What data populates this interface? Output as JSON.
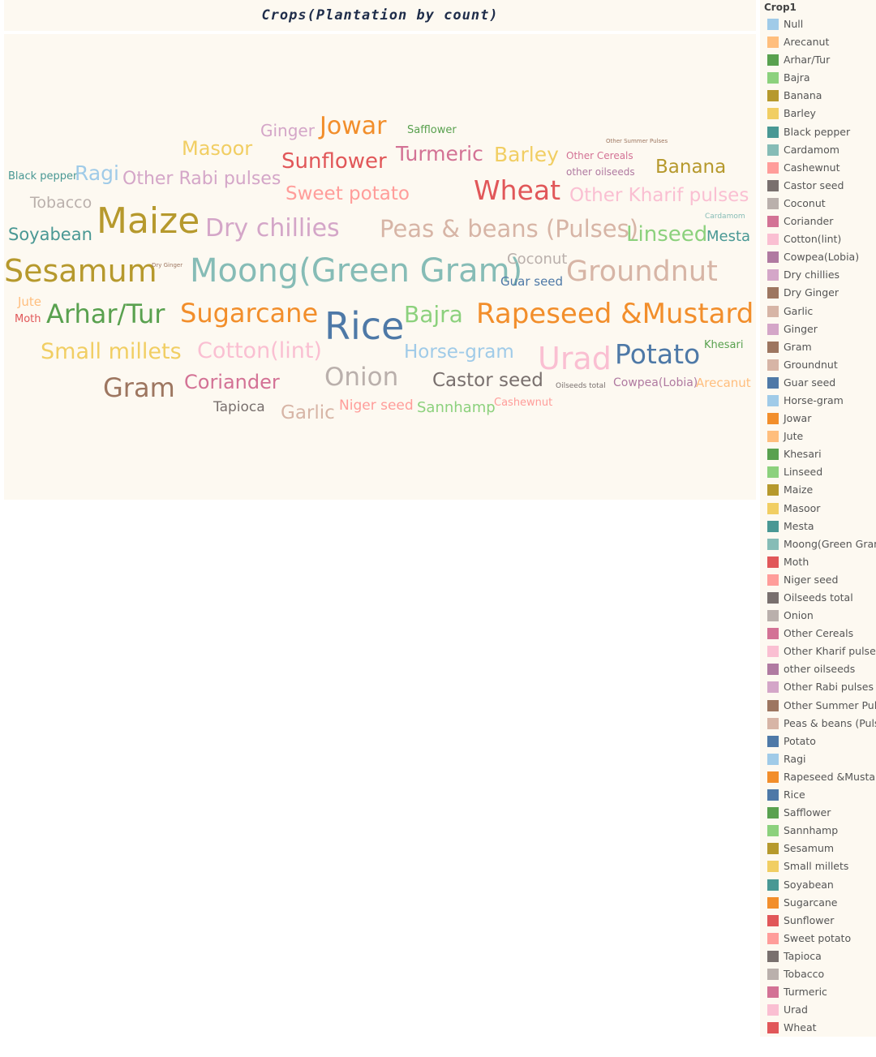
{
  "chart_data": {
    "type": "wordcloud",
    "title": "Crops(Plantation by count)",
    "legend": {
      "title": "Crop1",
      "placement": "right",
      "items": [
        {
          "label": "Null",
          "color": "#a0cbe8"
        },
        {
          "label": "Arecanut",
          "color": "#ffbe7d"
        },
        {
          "label": "Arhar/Tur",
          "color": "#59a14f"
        },
        {
          "label": "Bajra",
          "color": "#8cd17d"
        },
        {
          "label": "Banana",
          "color": "#b6992d"
        },
        {
          "label": "Barley",
          "color": "#f1ce63"
        },
        {
          "label": "Black pepper",
          "color": "#499894"
        },
        {
          "label": "Cardamom",
          "color": "#86bcb6"
        },
        {
          "label": "Cashewnut",
          "color": "#ff9d9a"
        },
        {
          "label": "Castor seed",
          "color": "#79706e"
        },
        {
          "label": "Coconut",
          "color": "#bab0ac"
        },
        {
          "label": "Coriander",
          "color": "#d37295"
        },
        {
          "label": "Cotton(lint)",
          "color": "#fabfd2"
        },
        {
          "label": "Cowpea(Lobia)",
          "color": "#b07aa1"
        },
        {
          "label": "Dry chillies",
          "color": "#d4a6c8"
        },
        {
          "label": "Dry Ginger",
          "color": "#9d7660"
        },
        {
          "label": "Garlic",
          "color": "#d7b5a6"
        },
        {
          "label": "Ginger",
          "color": "#d4a6c8"
        },
        {
          "label": "Gram",
          "color": "#9d7660"
        },
        {
          "label": "Groundnut",
          "color": "#d7b5a6"
        },
        {
          "label": "Guar seed",
          "color": "#4e79a7"
        },
        {
          "label": "Horse-gram",
          "color": "#a0cbe8"
        },
        {
          "label": "Jowar",
          "color": "#f28e2b"
        },
        {
          "label": "Jute",
          "color": "#ffbe7d"
        },
        {
          "label": "Khesari",
          "color": "#59a14f"
        },
        {
          "label": "Linseed",
          "color": "#8cd17d"
        },
        {
          "label": "Maize",
          "color": "#b6992d"
        },
        {
          "label": "Masoor",
          "color": "#f1ce63"
        },
        {
          "label": "Mesta",
          "color": "#499894"
        },
        {
          "label": "Moong(Green Gram)",
          "color": "#86bcb6"
        },
        {
          "label": "Moth",
          "color": "#e15759"
        },
        {
          "label": "Niger seed",
          "color": "#ff9d9a"
        },
        {
          "label": "Oilseeds total",
          "color": "#79706e"
        },
        {
          "label": "Onion",
          "color": "#bab0ac"
        },
        {
          "label": "Other Cereals",
          "color": "#d37295"
        },
        {
          "label": "Other Kharif pulses",
          "color": "#fabfd2"
        },
        {
          "label": "other oilseeds",
          "color": "#b07aa1"
        },
        {
          "label": "Other Rabi pulses",
          "color": "#d4a6c8"
        },
        {
          "label": "Other Summer Pulses",
          "color": "#9d7660"
        },
        {
          "label": "Peas & beans (Pulses)",
          "color": "#d7b5a6"
        },
        {
          "label": "Potato",
          "color": "#4e79a7"
        },
        {
          "label": "Ragi",
          "color": "#a0cbe8"
        },
        {
          "label": "Rapeseed &Mustard",
          "color": "#f28e2b"
        },
        {
          "label": "Rice",
          "color": "#4e79a7"
        },
        {
          "label": "Safflower",
          "color": "#59a14f"
        },
        {
          "label": "Sannhamp",
          "color": "#8cd17d"
        },
        {
          "label": "Sesamum",
          "color": "#b6992d"
        },
        {
          "label": "Small millets",
          "color": "#f1ce63"
        },
        {
          "label": "Soyabean",
          "color": "#499894"
        },
        {
          "label": "Sugarcane",
          "color": "#f28e2b"
        },
        {
          "label": "Sunflower",
          "color": "#e15759"
        },
        {
          "label": "Sweet potato",
          "color": "#ff9d9a"
        },
        {
          "label": "Tapioca",
          "color": "#79706e"
        },
        {
          "label": "Tobacco",
          "color": "#bab0ac"
        },
        {
          "label": "Turmeric",
          "color": "#d37295"
        },
        {
          "label": "Urad",
          "color": "#fabfd2"
        },
        {
          "label": "Wheat",
          "color": "#e15759"
        }
      ]
    },
    "words": [
      {
        "text": "Ginger",
        "color": "#d4a6c8",
        "weight": 20
      },
      {
        "text": "Jowar",
        "color": "#f28e2b",
        "weight": 30
      },
      {
        "text": "Safflower",
        "color": "#59a14f",
        "weight": 13
      },
      {
        "text": "Masoor",
        "color": "#f1ce63",
        "weight": 24
      },
      {
        "text": "Sunflower",
        "color": "#e15759",
        "weight": 26
      },
      {
        "text": "Turmeric",
        "color": "#d37295",
        "weight": 25
      },
      {
        "text": "Barley",
        "color": "#f1ce63",
        "weight": 25
      },
      {
        "text": "Other Summer Pulses",
        "color": "#9d7660",
        "weight": 7
      },
      {
        "text": "Other Cereals",
        "color": "#d37295",
        "weight": 12
      },
      {
        "text": "other oilseeds",
        "color": "#b07aa1",
        "weight": 12
      },
      {
        "text": "Banana",
        "color": "#b6992d",
        "weight": 23
      },
      {
        "text": "Black pepper",
        "color": "#499894",
        "weight": 13
      },
      {
        "text": "Ragi",
        "color": "#a0cbe8",
        "weight": 25
      },
      {
        "text": "Other Rabi pulses",
        "color": "#d4a6c8",
        "weight": 22
      },
      {
        "text": "Tobacco",
        "color": "#bab0ac",
        "weight": 19
      },
      {
        "text": "Sweet potato",
        "color": "#ff9d9a",
        "weight": 23
      },
      {
        "text": "Wheat",
        "color": "#e15759",
        "weight": 33
      },
      {
        "text": "Other Kharif pulses",
        "color": "#fabfd2",
        "weight": 23
      },
      {
        "text": "Cardamom",
        "color": "#86bcb6",
        "weight": 9
      },
      {
        "text": "Soyabean",
        "color": "#499894",
        "weight": 21
      },
      {
        "text": "Maize",
        "color": "#b6992d",
        "weight": 44
      },
      {
        "text": "Dry chillies",
        "color": "#d4a6c8",
        "weight": 30
      },
      {
        "text": "Peas & beans (Pulses)",
        "color": "#d7b5a6",
        "weight": 29
      },
      {
        "text": "Linseed",
        "color": "#8cd17d",
        "weight": 26
      },
      {
        "text": "Mesta",
        "color": "#499894",
        "weight": 18
      },
      {
        "text": "Sesamum",
        "color": "#b6992d",
        "weight": 38
      },
      {
        "text": "Dry Ginger",
        "color": "#9d7660",
        "weight": 7
      },
      {
        "text": "Moong(Green Gram)",
        "color": "#86bcb6",
        "weight": 40
      },
      {
        "text": "Coconut",
        "color": "#bab0ac",
        "weight": 18
      },
      {
        "text": "Guar seed",
        "color": "#4e79a7",
        "weight": 15
      },
      {
        "text": "Groundnut",
        "color": "#d7b5a6",
        "weight": 35
      },
      {
        "text": "Jute",
        "color": "#ffbe7d",
        "weight": 15
      },
      {
        "text": "Moth",
        "color": "#e15759",
        "weight": 13
      },
      {
        "text": "Arhar/Tur",
        "color": "#59a14f",
        "weight": 32
      },
      {
        "text": "Sugarcane",
        "color": "#f28e2b",
        "weight": 32
      },
      {
        "text": "Rice",
        "color": "#4e79a7",
        "weight": 46
      },
      {
        "text": "Bajra",
        "color": "#8cd17d",
        "weight": 28
      },
      {
        "text": "Rapeseed &Mustard",
        "color": "#f28e2b",
        "weight": 34
      },
      {
        "text": "Small millets",
        "color": "#f1ce63",
        "weight": 27
      },
      {
        "text": "Cotton(lint)",
        "color": "#fabfd2",
        "weight": 27
      },
      {
        "text": "Horse-gram",
        "color": "#a0cbe8",
        "weight": 23
      },
      {
        "text": "Urad",
        "color": "#fabfd2",
        "weight": 38
      },
      {
        "text": "Potato",
        "color": "#4e79a7",
        "weight": 33
      },
      {
        "text": "Khesari",
        "color": "#59a14f",
        "weight": 13
      },
      {
        "text": "Gram",
        "color": "#9d7660",
        "weight": 32
      },
      {
        "text": "Coriander",
        "color": "#d37295",
        "weight": 24
      },
      {
        "text": "Onion",
        "color": "#bab0ac",
        "weight": 31
      },
      {
        "text": "Castor seed",
        "color": "#79706e",
        "weight": 23
      },
      {
        "text": "Oilseeds total",
        "color": "#79706e",
        "weight": 9
      },
      {
        "text": "Cowpea(Lobia)",
        "color": "#b07aa1",
        "weight": 14
      },
      {
        "text": "Arecanut",
        "color": "#ffbe7d",
        "weight": 15
      },
      {
        "text": "Tapioca",
        "color": "#79706e",
        "weight": 17
      },
      {
        "text": "Garlic",
        "color": "#d7b5a6",
        "weight": 23
      },
      {
        "text": "Niger seed",
        "color": "#ff9d9a",
        "weight": 17
      },
      {
        "text": "Sannhamp",
        "color": "#8cd17d",
        "weight": 18
      },
      {
        "text": "Cashewnut",
        "color": "#ff9d9a",
        "weight": 13
      }
    ]
  }
}
